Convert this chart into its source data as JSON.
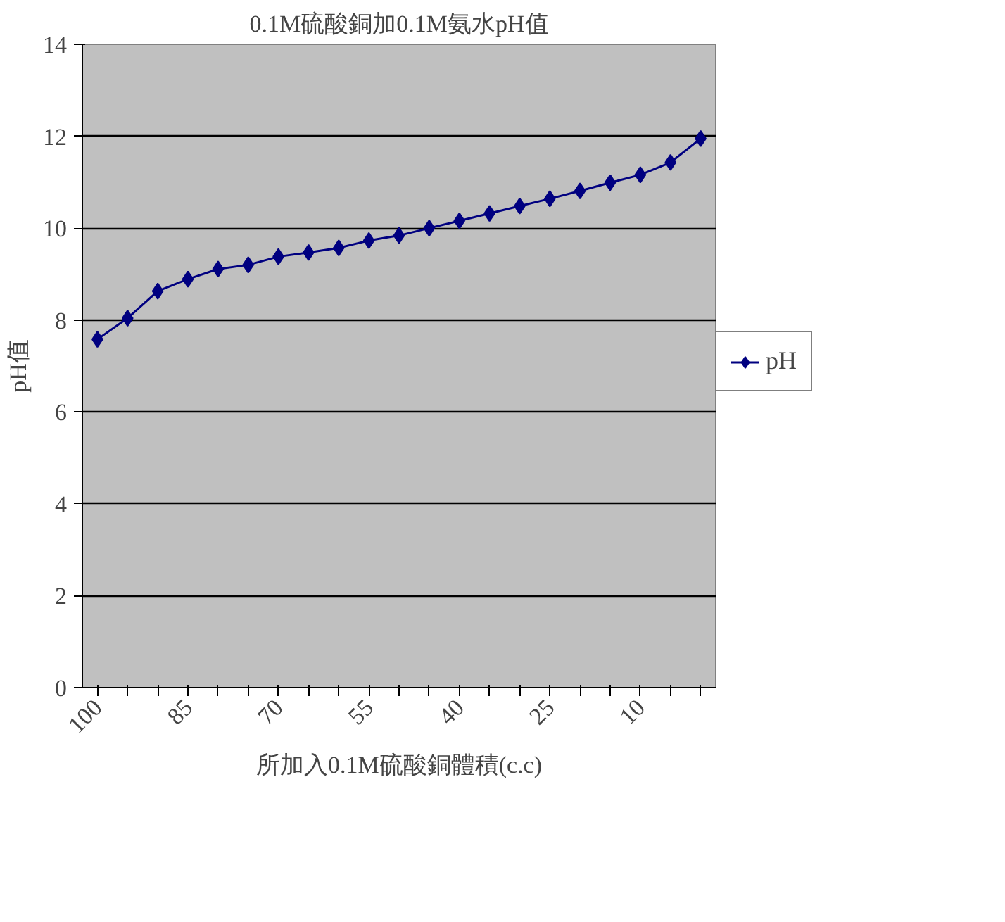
{
  "chart_data": {
    "type": "line",
    "title": "0.1M硫酸銅加0.1M氨水pH值",
    "xlabel": "所加入0.1M硫酸銅體積(c.c)",
    "ylabel": "pH值",
    "categories": [
      "100",
      null,
      null,
      "85",
      null,
      null,
      "70",
      null,
      null,
      "55",
      null,
      null,
      "40",
      null,
      null,
      "25",
      null,
      null,
      "10",
      null,
      null
    ],
    "series": [
      {
        "name": "pH",
        "color": "#000080",
        "values": [
          7.58,
          8.04,
          8.63,
          8.89,
          9.11,
          9.2,
          9.38,
          9.47,
          9.57,
          9.73,
          9.84,
          10.0,
          10.16,
          10.32,
          10.48,
          10.64,
          10.81,
          10.99,
          11.16,
          11.43,
          11.95
        ]
      }
    ],
    "ylim": [
      0,
      14
    ],
    "yticks": [
      0,
      2,
      4,
      6,
      8,
      10,
      12,
      14
    ],
    "grid": "y",
    "legend": "right",
    "marker": "diamond",
    "line_style": "solid"
  }
}
